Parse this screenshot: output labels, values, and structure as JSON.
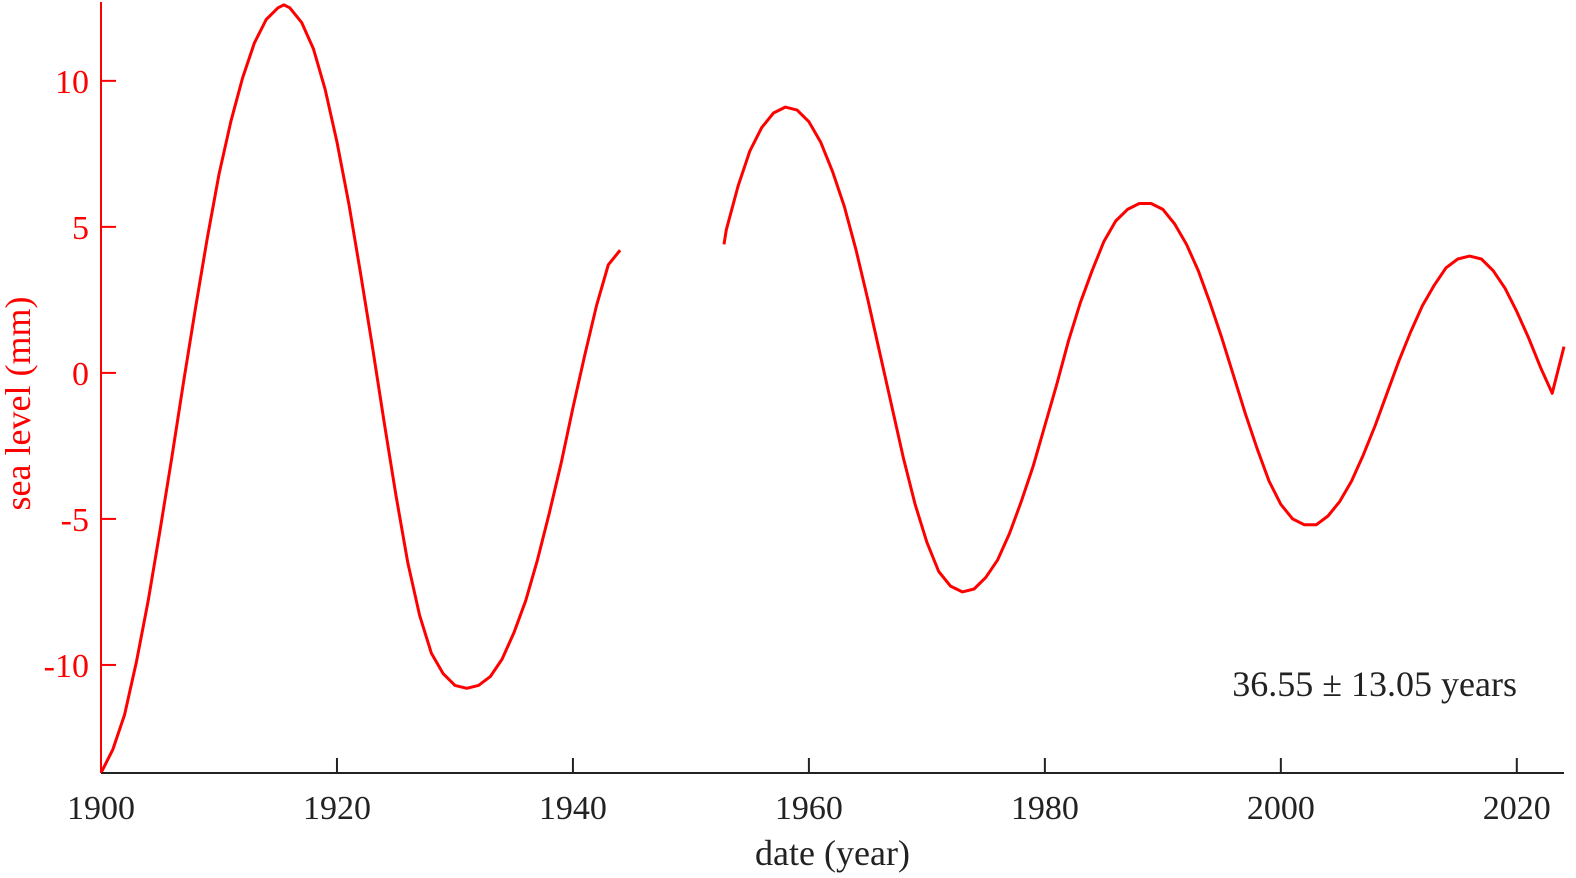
{
  "chart_data": {
    "type": "line",
    "title": "",
    "xlabel": "date (year)",
    "ylabel": "sea level (mm)",
    "xlim": [
      1900,
      2024
    ],
    "ylim": [
      -13.7,
      12.7
    ],
    "xticks": [
      1900,
      1920,
      1940,
      1960,
      1980,
      2000,
      2020
    ],
    "yticks": [
      -10,
      -5,
      0,
      5,
      10
    ],
    "ytick_labels": [
      "-10",
      "-5",
      "0",
      "5",
      "10"
    ],
    "grid": false,
    "legend": "none",
    "annotation": "36.55 ± 13.05 years",
    "colors": {
      "series": "#ff0000",
      "x_axis": "#222222",
      "y_axis": "#ff0000",
      "annotation": "#222222"
    },
    "series": [
      {
        "segment": 1,
        "points": [
          [
            1900.0,
            -13.7
          ],
          [
            1901.0,
            -12.9
          ],
          [
            1902.0,
            -11.7
          ],
          [
            1903.0,
            -9.9
          ],
          [
            1904.0,
            -7.8
          ],
          [
            1905.0,
            -5.4
          ],
          [
            1906.0,
            -2.9
          ],
          [
            1907.0,
            -0.3
          ],
          [
            1908.0,
            2.2
          ],
          [
            1909.0,
            4.6
          ],
          [
            1910.0,
            6.8
          ],
          [
            1911.0,
            8.6
          ],
          [
            1912.0,
            10.1
          ],
          [
            1913.0,
            11.3
          ],
          [
            1914.0,
            12.1
          ],
          [
            1915.0,
            12.5
          ],
          [
            1915.5,
            12.6
          ],
          [
            1916.0,
            12.5
          ],
          [
            1917.0,
            12.0
          ],
          [
            1918.0,
            11.1
          ],
          [
            1919.0,
            9.7
          ],
          [
            1920.0,
            7.9
          ],
          [
            1921.0,
            5.8
          ],
          [
            1922.0,
            3.4
          ],
          [
            1923.0,
            0.9
          ],
          [
            1924.0,
            -1.7
          ],
          [
            1925.0,
            -4.2
          ],
          [
            1926.0,
            -6.5
          ],
          [
            1927.0,
            -8.3
          ],
          [
            1928.0,
            -9.6
          ],
          [
            1929.0,
            -10.3
          ],
          [
            1930.0,
            -10.7
          ],
          [
            1931.0,
            -10.8
          ],
          [
            1932.0,
            -10.7
          ],
          [
            1933.0,
            -10.4
          ],
          [
            1934.0,
            -9.8
          ],
          [
            1935.0,
            -8.9
          ],
          [
            1936.0,
            -7.8
          ],
          [
            1937.0,
            -6.4
          ],
          [
            1938.0,
            -4.8
          ],
          [
            1939.0,
            -3.1
          ],
          [
            1940.0,
            -1.2
          ],
          [
            1941.0,
            0.6
          ],
          [
            1942.0,
            2.3
          ],
          [
            1943.0,
            3.7
          ],
          [
            1944.0,
            4.2
          ]
        ]
      },
      {
        "segment": 2,
        "points": [
          [
            1952.8,
            4.4
          ],
          [
            1953.0,
            4.9
          ],
          [
            1954.0,
            6.4
          ],
          [
            1955.0,
            7.6
          ],
          [
            1956.0,
            8.4
          ],
          [
            1957.0,
            8.9
          ],
          [
            1958.0,
            9.1
          ],
          [
            1959.0,
            9.0
          ],
          [
            1960.0,
            8.6
          ],
          [
            1961.0,
            7.9
          ],
          [
            1962.0,
            6.9
          ],
          [
            1963.0,
            5.7
          ],
          [
            1964.0,
            4.2
          ],
          [
            1965.0,
            2.5
          ],
          [
            1966.0,
            0.7
          ],
          [
            1967.0,
            -1.1
          ],
          [
            1968.0,
            -2.9
          ],
          [
            1969.0,
            -4.5
          ],
          [
            1970.0,
            -5.8
          ],
          [
            1971.0,
            -6.8
          ],
          [
            1972.0,
            -7.3
          ],
          [
            1973.0,
            -7.5
          ],
          [
            1974.0,
            -7.4
          ],
          [
            1975.0,
            -7.0
          ],
          [
            1976.0,
            -6.4
          ],
          [
            1977.0,
            -5.5
          ],
          [
            1978.0,
            -4.4
          ],
          [
            1979.0,
            -3.2
          ],
          [
            1980.0,
            -1.8
          ],
          [
            1981.0,
            -0.4
          ],
          [
            1982.0,
            1.1
          ],
          [
            1983.0,
            2.4
          ],
          [
            1984.0,
            3.5
          ],
          [
            1985.0,
            4.5
          ],
          [
            1986.0,
            5.2
          ],
          [
            1987.0,
            5.6
          ],
          [
            1988.0,
            5.8
          ],
          [
            1989.0,
            5.8
          ],
          [
            1990.0,
            5.6
          ],
          [
            1991.0,
            5.1
          ],
          [
            1992.0,
            4.4
          ],
          [
            1993.0,
            3.5
          ],
          [
            1994.0,
            2.4
          ],
          [
            1995.0,
            1.2
          ],
          [
            1996.0,
            -0.1
          ],
          [
            1997.0,
            -1.4
          ],
          [
            1998.0,
            -2.6
          ],
          [
            1999.0,
            -3.7
          ],
          [
            2000.0,
            -4.5
          ],
          [
            2001.0,
            -5.0
          ],
          [
            2002.0,
            -5.2
          ],
          [
            2003.0,
            -5.2
          ],
          [
            2004.0,
            -4.9
          ],
          [
            2005.0,
            -4.4
          ],
          [
            2006.0,
            -3.7
          ],
          [
            2007.0,
            -2.8
          ],
          [
            2008.0,
            -1.8
          ],
          [
            2009.0,
            -0.7
          ],
          [
            2010.0,
            0.4
          ],
          [
            2011.0,
            1.4
          ],
          [
            2012.0,
            2.3
          ],
          [
            2013.0,
            3.0
          ],
          [
            2014.0,
            3.6
          ],
          [
            2015.0,
            3.9
          ],
          [
            2016.0,
            4.0
          ],
          [
            2017.0,
            3.9
          ],
          [
            2018.0,
            3.5
          ],
          [
            2019.0,
            2.9
          ],
          [
            2020.0,
            2.1
          ],
          [
            2021.0,
            1.2
          ],
          [
            2022.0,
            0.2
          ],
          [
            2023.0,
            -0.7
          ],
          [
            2024.0,
            0.9
          ]
        ]
      }
    ]
  }
}
